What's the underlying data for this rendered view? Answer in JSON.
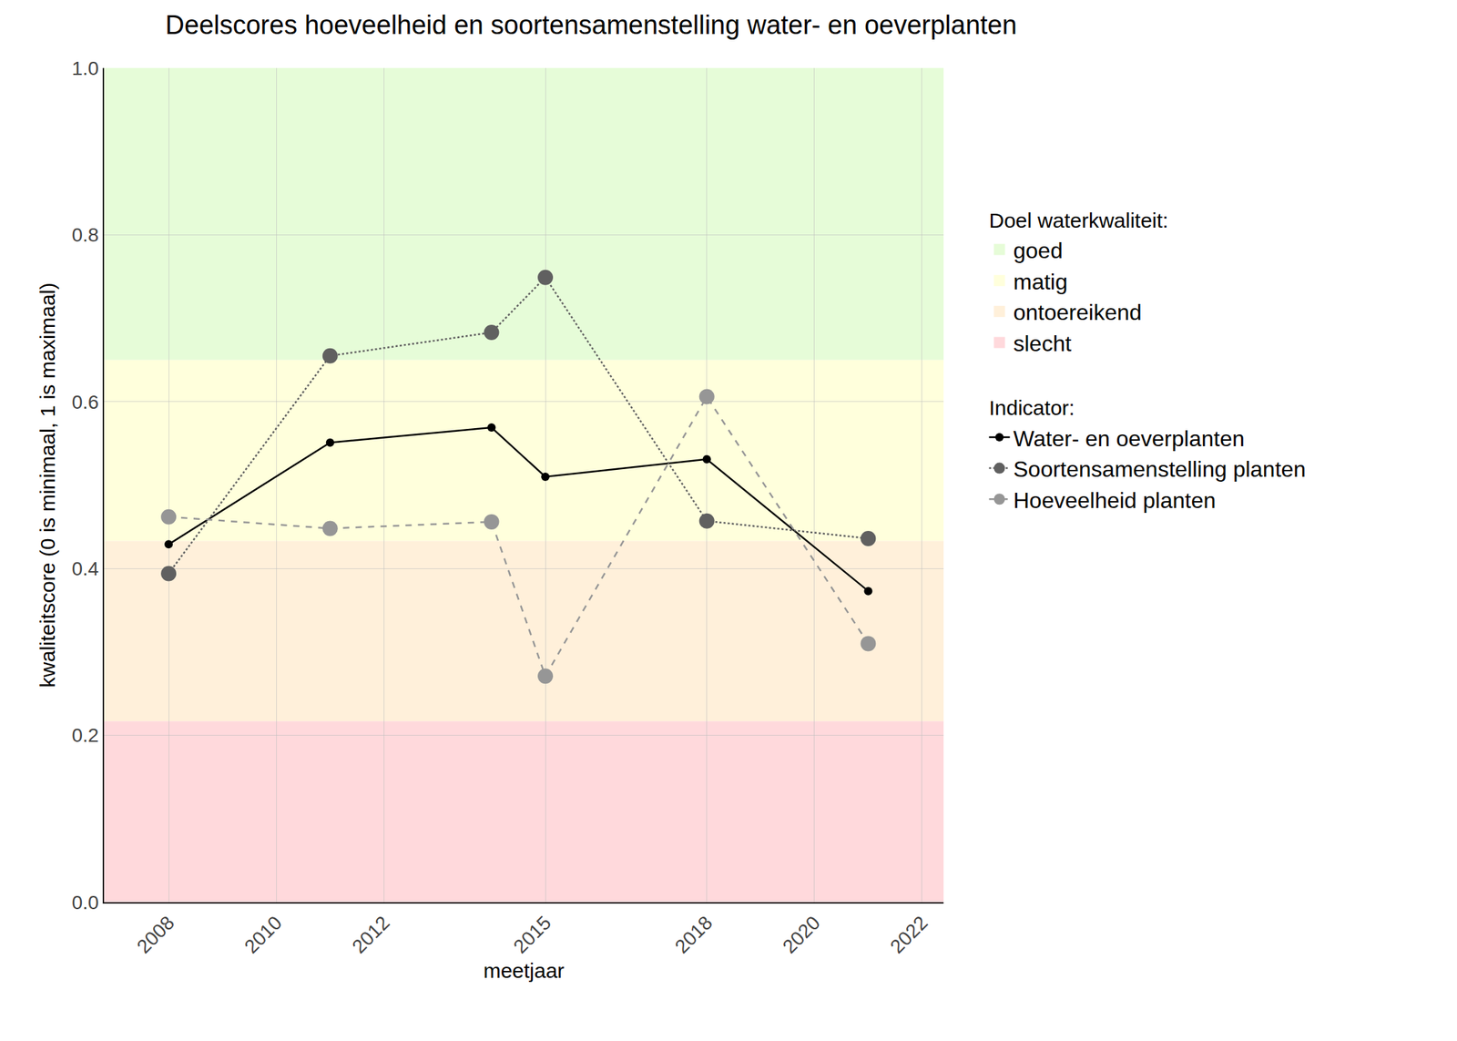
{
  "chart_data": {
    "type": "line",
    "title": "Deelscores hoeveelheid en soortensamenstelling water- en oeverplanten",
    "x_label": "meetjaar",
    "y_label": "kwaliteitscore (0 is minimaal, 1 is maximaal)",
    "x": [
      2008,
      2011,
      2014,
      2015,
      2018,
      2021
    ],
    "xlim": [
      2006.8,
      2022.4
    ],
    "xticks": [
      2008,
      2010,
      2012,
      2015,
      2018,
      2020,
      2022
    ],
    "ylim": [
      0,
      1
    ],
    "yticks": [
      {
        "value": 0,
        "label": "0.0"
      },
      0.2,
      0.4,
      0.6,
      0.8,
      {
        "value": 1,
        "label": "1.0"
      }
    ],
    "grid": true,
    "legend": "right",
    "legend_titles": {
      "bands": "Doel waterkwaliteit:",
      "series": "Indicator:"
    },
    "bands": [
      {
        "name": "goed",
        "color": "#e6fcd8",
        "from": 0.65,
        "to": 1
      },
      {
        "name": "matig",
        "color": "#ffffdc",
        "from": 0.433,
        "to": 0.65
      },
      {
        "name": "ontoereikend",
        "color": "#fff0da",
        "from": 0.217,
        "to": 0.433
      },
      {
        "name": "slecht",
        "color": "#ffd9dc",
        "from": 0,
        "to": 0.217
      }
    ],
    "series": [
      {
        "name": "Water- en oeverplanten",
        "color": "#000000",
        "line_style": "solid",
        "marker": "circle",
        "values": [
          0.429,
          0.551,
          0.569,
          0.51,
          0.531,
          0.373
        ]
      },
      {
        "name": "Soortensamenstelling planten",
        "color": "#606060",
        "line_style": "dot",
        "marker": "circle",
        "values": [
          0.394,
          0.655,
          0.683,
          0.749,
          0.457,
          0.436
        ]
      },
      {
        "name": "Hoeveelheid planten",
        "color": "#969696",
        "line_style": "dash",
        "marker": "circle",
        "values": [
          0.462,
          0.448,
          0.456,
          0.271,
          0.606,
          0.31
        ]
      }
    ]
  }
}
